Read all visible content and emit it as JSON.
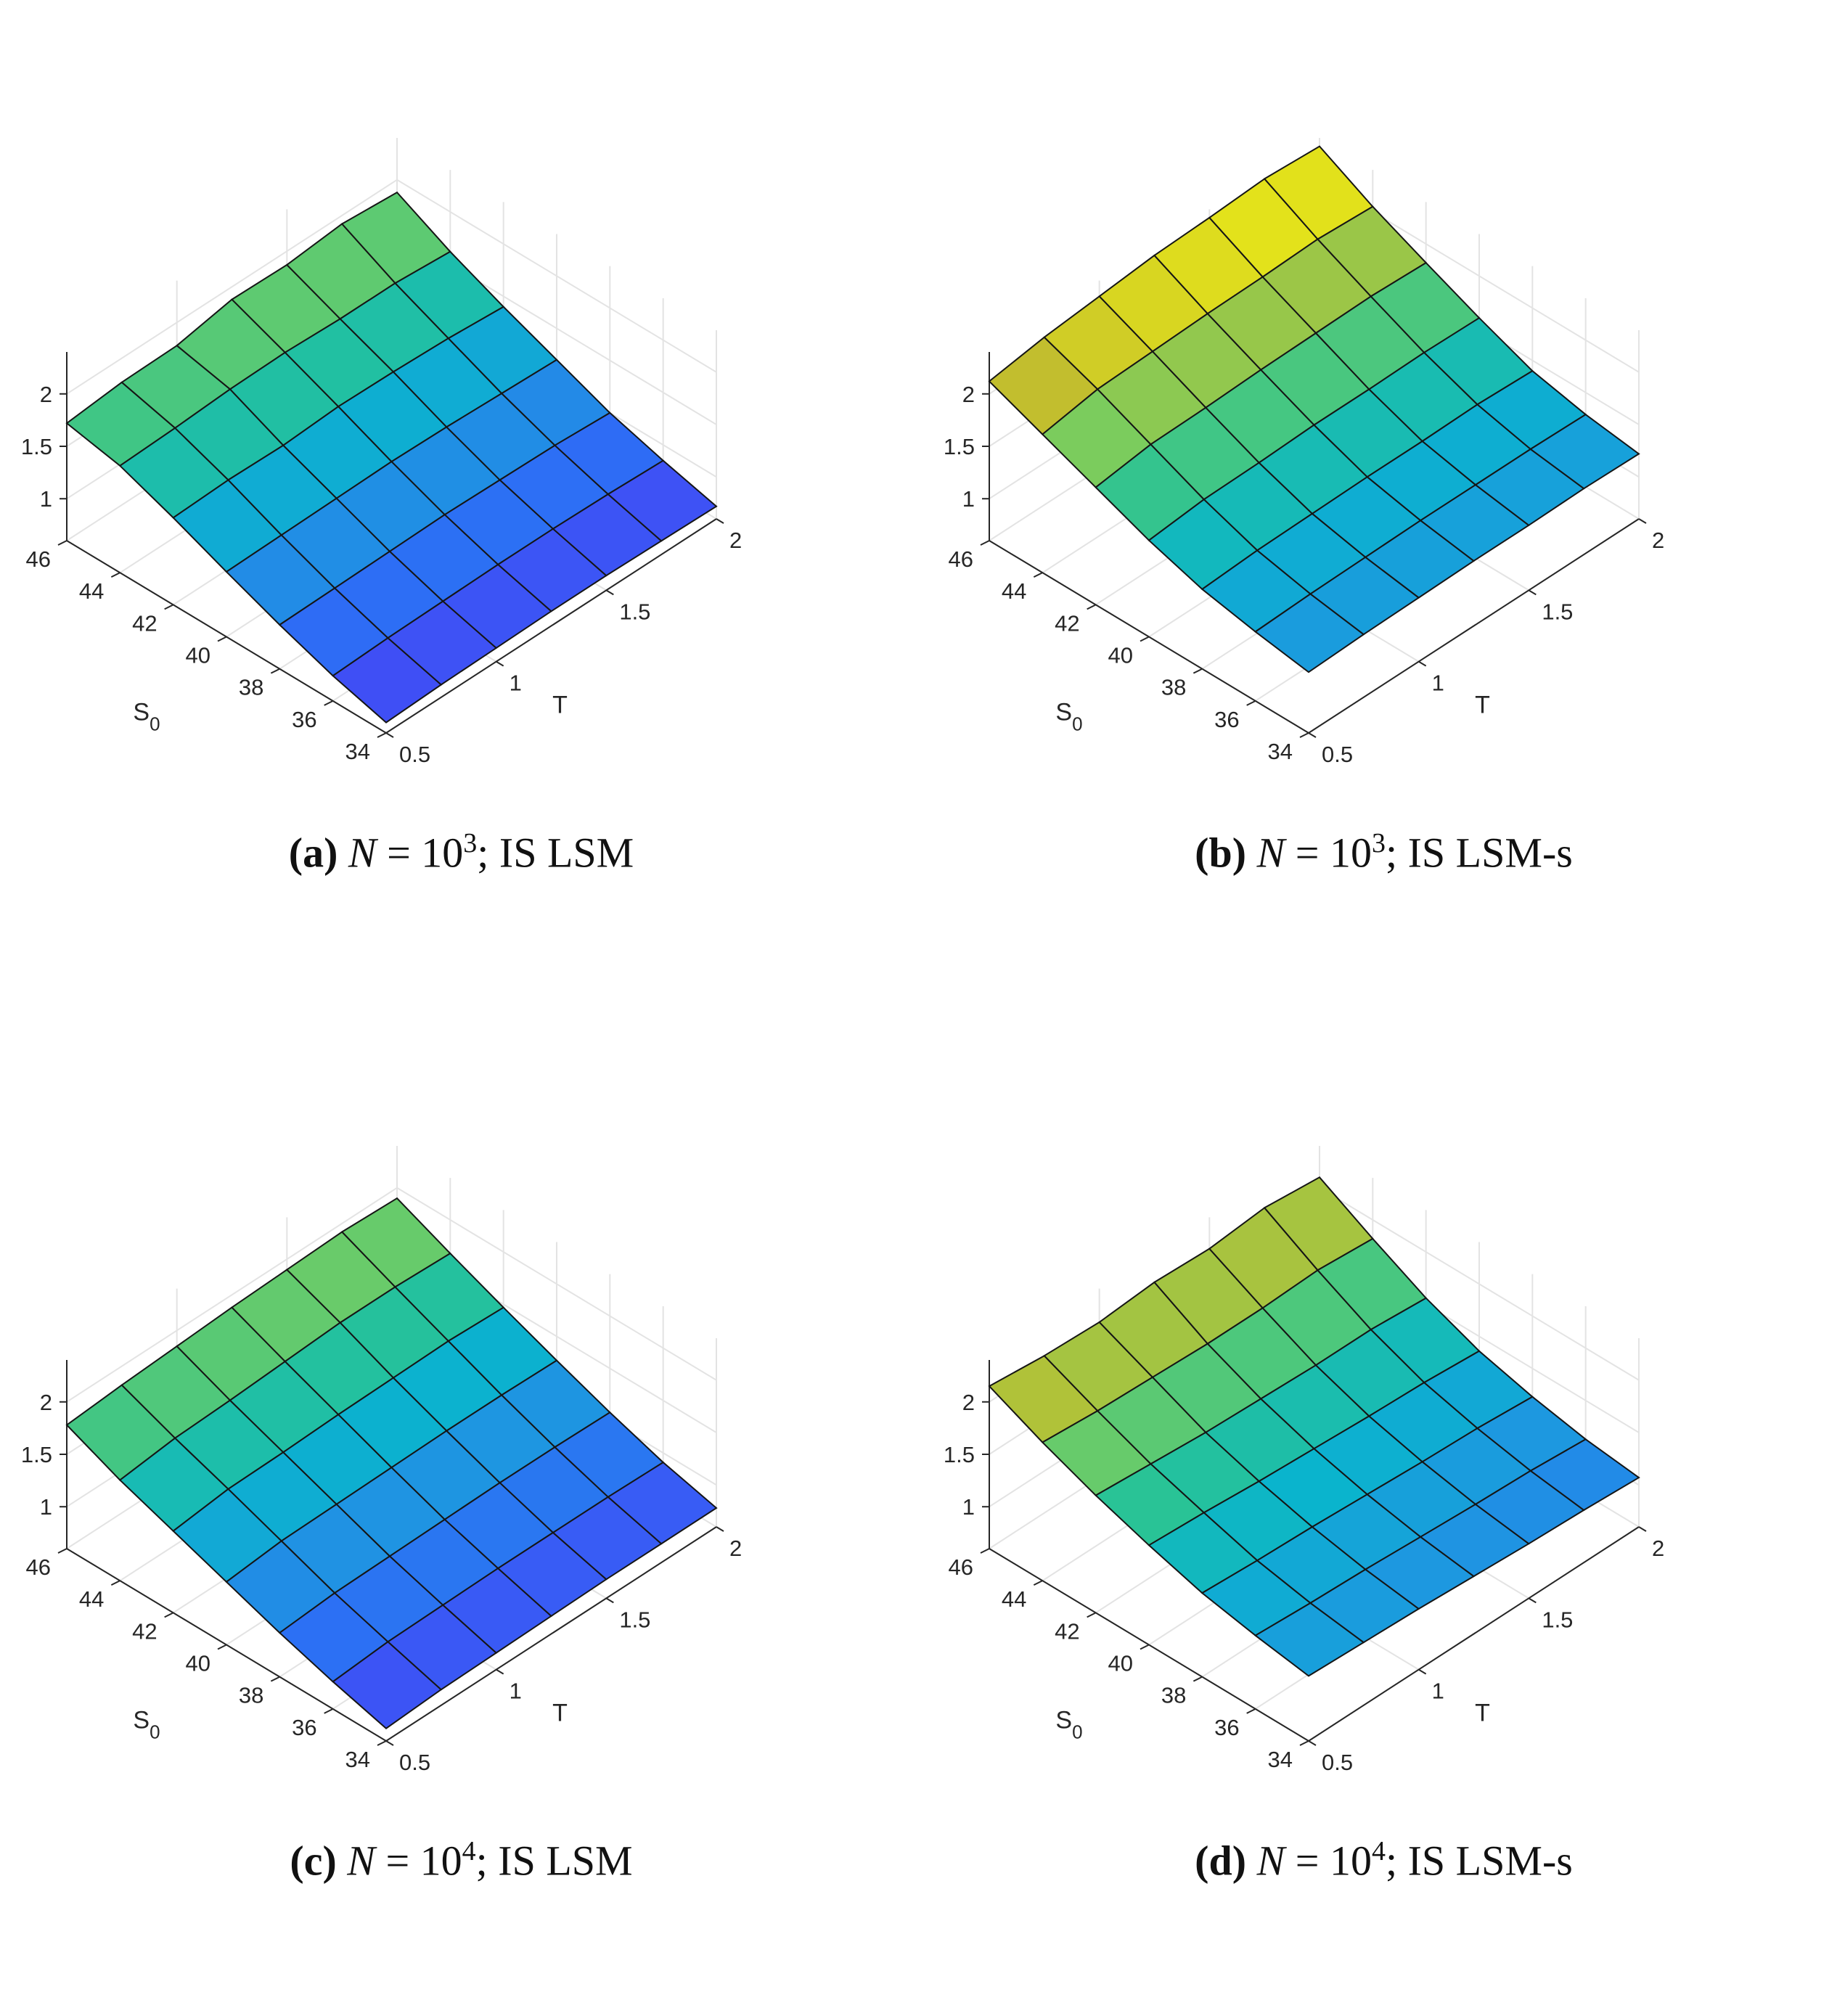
{
  "captions": [
    {
      "label": "a",
      "n_base": "10",
      "n_exp": "3",
      "method": "IS LSM"
    },
    {
      "label": "b",
      "n_base": "10",
      "n_exp": "3",
      "method": "IS LSM-s"
    },
    {
      "label": "c",
      "n_base": "10",
      "n_exp": "4",
      "method": "IS LSM"
    },
    {
      "label": "d",
      "n_base": "10",
      "n_exp": "4",
      "method": "IS LSM-s"
    }
  ],
  "chart_data": [
    {
      "type": "surface",
      "caption": "(a) N = 10^3; IS LSM",
      "xlabel": "S_0",
      "ylabel": "T",
      "zlabel": "",
      "x": [
        46,
        44,
        42,
        40,
        38,
        36,
        34
      ],
      "y": [
        0.5,
        0.75,
        1.0,
        1.25,
        1.5,
        1.75,
        2.0
      ],
      "x_ticks": [
        46,
        44,
        42,
        40,
        38,
        36,
        34
      ],
      "y_ticks": [
        0.5,
        1,
        1.5,
        2
      ],
      "z_ticks": [
        1,
        1.5,
        2
      ],
      "zlim": [
        0.6,
        2.4
      ],
      "colorscale": "parula",
      "clim": [
        0.5,
        2.3
      ],
      "z": [
        [
          1.72,
          1.77,
          1.78,
          1.88,
          1.87,
          1.92,
          1.88
        ],
        [
          1.62,
          1.64,
          1.67,
          1.68,
          1.66,
          1.66,
          1.62
        ],
        [
          1.43,
          1.45,
          1.44,
          1.47,
          1.46,
          1.44,
          1.4
        ],
        [
          1.22,
          1.23,
          1.24,
          1.25,
          1.24,
          1.22,
          1.2
        ],
        [
          1.02,
          1.03,
          1.04,
          1.05,
          1.04,
          1.03,
          1.0
        ],
        [
          0.84,
          0.86,
          0.87,
          0.88,
          0.88,
          0.87,
          0.85
        ],
        [
          0.7,
          0.72,
          0.73,
          0.74,
          0.74,
          0.73,
          0.72
        ]
      ]
    },
    {
      "type": "surface",
      "caption": "(b) N = 10^3; IS LSM-s",
      "xlabel": "S_0",
      "ylabel": "T",
      "zlabel": "",
      "x": [
        46,
        44,
        42,
        40,
        38,
        36,
        34
      ],
      "y": [
        0.5,
        0.75,
        1.0,
        1.25,
        1.5,
        1.75,
        2.0
      ],
      "x_ticks": [
        46,
        44,
        42,
        40,
        38,
        36,
        34
      ],
      "y_ticks": [
        0.5,
        1,
        1.5,
        2
      ],
      "z_ticks": [
        1,
        1.5,
        2
      ],
      "zlim": [
        0.6,
        2.4
      ],
      "colorscale": "parula",
      "clim": [
        0.5,
        2.3
      ],
      "z": [
        [
          2.12,
          2.2,
          2.25,
          2.3,
          2.32,
          2.35,
          2.32
        ],
        [
          1.92,
          2.01,
          2.03,
          2.05,
          2.06,
          2.08,
          2.05
        ],
        [
          1.72,
          1.79,
          1.8,
          1.82,
          1.83,
          1.84,
          1.82
        ],
        [
          1.52,
          1.57,
          1.58,
          1.6,
          1.6,
          1.61,
          1.6
        ],
        [
          1.36,
          1.39,
          1.4,
          1.41,
          1.41,
          1.42,
          1.4
        ],
        [
          1.26,
          1.28,
          1.29,
          1.3,
          1.3,
          1.3,
          1.29
        ],
        [
          1.18,
          1.2,
          1.21,
          1.22,
          1.22,
          1.23,
          1.22
        ]
      ]
    },
    {
      "type": "surface",
      "caption": "(c) N = 10^4; IS LSM",
      "xlabel": "S_0",
      "ylabel": "T",
      "zlabel": "",
      "x": [
        46,
        44,
        42,
        40,
        38,
        36,
        34
      ],
      "y": [
        0.5,
        0.75,
        1.0,
        1.25,
        1.5,
        1.75,
        2.0
      ],
      "x_ticks": [
        46,
        44,
        42,
        40,
        38,
        36,
        34
      ],
      "y_ticks": [
        0.5,
        1,
        1.5,
        2
      ],
      "z_ticks": [
        1,
        1.5,
        2
      ],
      "zlim": [
        0.6,
        2.4
      ],
      "colorscale": "parula",
      "clim": [
        0.5,
        2.3
      ],
      "z": [
        [
          1.78,
          1.82,
          1.85,
          1.88,
          1.9,
          1.92,
          1.9
        ],
        [
          1.56,
          1.62,
          1.64,
          1.67,
          1.7,
          1.7,
          1.68
        ],
        [
          1.38,
          1.44,
          1.45,
          1.47,
          1.48,
          1.49,
          1.47
        ],
        [
          1.2,
          1.25,
          1.26,
          1.27,
          1.28,
          1.28,
          1.27
        ],
        [
          1.02,
          1.06,
          1.07,
          1.08,
          1.09,
          1.09,
          1.08
        ],
        [
          0.86,
          0.9,
          0.91,
          0.92,
          0.92,
          0.92,
          0.91
        ],
        [
          0.72,
          0.75,
          0.76,
          0.77,
          0.78,
          0.78,
          0.78
        ]
      ]
    },
    {
      "type": "surface",
      "caption": "(d) N = 10^4; IS LSM-s",
      "xlabel": "S_0",
      "ylabel": "T",
      "zlabel": "",
      "x": [
        46,
        44,
        42,
        40,
        38,
        36,
        34
      ],
      "y": [
        0.5,
        0.75,
        1.0,
        1.25,
        1.5,
        1.75,
        2.0
      ],
      "x_ticks": [
        46,
        44,
        42,
        40,
        38,
        36,
        34
      ],
      "y_ticks": [
        0.5,
        1,
        1.5,
        2
      ],
      "z_ticks": [
        1,
        1.5,
        2
      ],
      "zlim": [
        0.6,
        2.4
      ],
      "colorscale": "parula",
      "clim": [
        0.5,
        2.3
      ],
      "z": [
        [
          2.15,
          2.1,
          2.08,
          2.12,
          2.1,
          2.15,
          2.1
        ],
        [
          1.92,
          1.88,
          1.86,
          1.84,
          1.84,
          1.86,
          1.82
        ],
        [
          1.72,
          1.68,
          1.64,
          1.62,
          1.6,
          1.6,
          1.56
        ],
        [
          1.55,
          1.52,
          1.48,
          1.45,
          1.42,
          1.4,
          1.36
        ],
        [
          1.4,
          1.37,
          1.35,
          1.32,
          1.29,
          1.27,
          1.23
        ],
        [
          1.3,
          1.27,
          1.25,
          1.22,
          1.19,
          1.17,
          1.13
        ],
        [
          1.22,
          1.2,
          1.18,
          1.15,
          1.12,
          1.1,
          1.07
        ]
      ]
    }
  ]
}
